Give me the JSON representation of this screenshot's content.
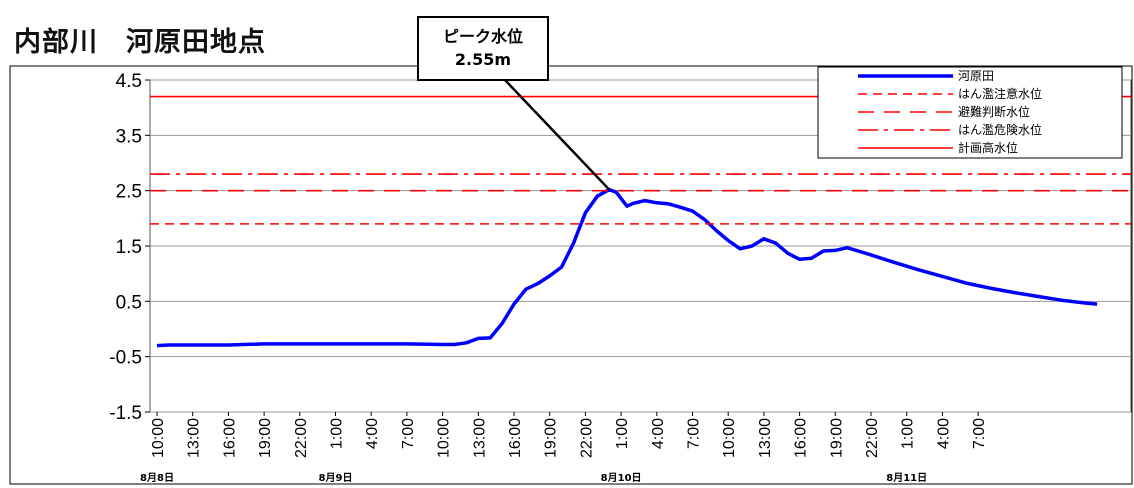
{
  "title": "内部川　河原田地点",
  "chart_data": {
    "type": "line",
    "title": "内部川　河原田地点",
    "ylim": [
      -1.5,
      4.5
    ],
    "yticks": [
      "4.5",
      "3.5",
      "2.5",
      "1.5",
      "0.5",
      "-0.5",
      "-1.5"
    ],
    "ytick_values": [
      4.5,
      3.5,
      2.5,
      1.5,
      0.5,
      -0.5,
      -1.5
    ],
    "x_tick_labels": [
      "10:00",
      "13:00",
      "16:00",
      "19:00",
      "22:00",
      "1:00",
      "4:00",
      "7:00",
      "10:00",
      "13:00",
      "16:00",
      "19:00",
      "22:00",
      "1:00",
      "4:00",
      "7:00",
      "10:00",
      "13:00",
      "16:00",
      "19:00",
      "22:00",
      "1:00",
      "4:00",
      "7:00"
    ],
    "day_labels": [
      {
        "label": "8月8日",
        "hour_index": 0
      },
      {
        "label": "8月9日",
        "hour_index": 15
      },
      {
        "label": "8月10日",
        "hour_index": 39
      },
      {
        "label": "8月11日",
        "hour_index": 63
      }
    ],
    "x_unit": "hours since 8月8日 10:00",
    "series": [
      {
        "name": "河原田",
        "color": "#0000ff",
        "style": "solid",
        "points": [
          [
            0,
            -0.3
          ],
          [
            1,
            -0.29
          ],
          [
            3,
            -0.29
          ],
          [
            6,
            -0.29
          ],
          [
            9,
            -0.27
          ],
          [
            12,
            -0.27
          ],
          [
            15,
            -0.27
          ],
          [
            18,
            -0.27
          ],
          [
            21,
            -0.27
          ],
          [
            24,
            -0.28
          ],
          [
            25,
            -0.28
          ],
          [
            26,
            -0.25
          ],
          [
            27,
            -0.17
          ],
          [
            28,
            -0.16
          ],
          [
            29,
            0.1
          ],
          [
            30,
            0.45
          ],
          [
            31,
            0.72
          ],
          [
            32,
            0.82
          ],
          [
            33,
            0.96
          ],
          [
            34,
            1.12
          ],
          [
            35,
            1.55
          ],
          [
            36,
            2.1
          ],
          [
            37,
            2.4
          ],
          [
            38,
            2.52
          ],
          [
            38.6,
            2.47
          ],
          [
            39.5,
            2.22
          ],
          [
            40,
            2.27
          ],
          [
            41,
            2.32
          ],
          [
            42,
            2.28
          ],
          [
            43,
            2.26
          ],
          [
            44,
            2.2
          ],
          [
            45,
            2.13
          ],
          [
            46,
            1.98
          ],
          [
            47,
            1.78
          ],
          [
            48,
            1.6
          ],
          [
            49,
            1.45
          ],
          [
            50,
            1.5
          ],
          [
            51,
            1.63
          ],
          [
            52,
            1.55
          ],
          [
            53,
            1.37
          ],
          [
            54,
            1.26
          ],
          [
            55,
            1.28
          ],
          [
            56,
            1.41
          ],
          [
            57,
            1.42
          ],
          [
            58,
            1.47
          ],
          [
            60,
            1.34
          ],
          [
            62,
            1.2
          ],
          [
            64,
            1.07
          ],
          [
            66,
            0.95
          ],
          [
            68,
            0.83
          ],
          [
            70,
            0.74
          ],
          [
            72,
            0.66
          ],
          [
            74,
            0.59
          ],
          [
            76,
            0.52
          ],
          [
            78,
            0.47
          ],
          [
            79,
            0.45
          ]
        ]
      },
      {
        "name": "はん濫注意水位",
        "color": "#ff0000",
        "style": "short-dash",
        "value": 1.9
      },
      {
        "name": "避難判断水位",
        "color": "#ff0000",
        "style": "long-dash",
        "value": 2.5
      },
      {
        "name": "はん濫危険水位",
        "color": "#ff0000",
        "style": "dash-dot",
        "value": 2.8
      },
      {
        "name": "計画高水位",
        "color": "#ff0000",
        "style": "solid",
        "value": 4.2
      }
    ],
    "annotation": {
      "line1": "ピーク水位",
      "line2": "2.55m",
      "x": 38,
      "y": 2.52
    },
    "grid": "horizontal",
    "legend_position": "top-right"
  }
}
